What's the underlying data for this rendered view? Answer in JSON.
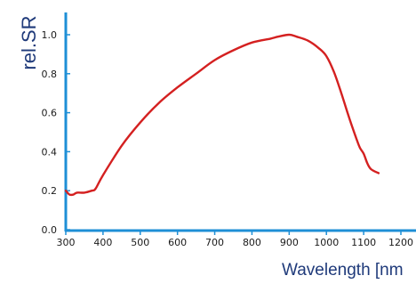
{
  "chart_data": {
    "type": "line",
    "title": "",
    "xlabel": "Wavelength [nm",
    "ylabel": "rel.SR",
    "xlim": [
      300,
      1200
    ],
    "ylim": [
      0.0,
      1.05
    ],
    "grid": false,
    "x_ticks": [
      300,
      400,
      500,
      600,
      700,
      800,
      900,
      1000,
      1100,
      1200
    ],
    "x_tick_labels": [
      "300",
      "400",
      "500",
      "600",
      "700",
      "800",
      "900",
      "1000",
      "1100",
      "1200"
    ],
    "y_ticks": [
      0.0,
      0.2,
      0.4,
      0.6,
      0.8,
      1.0
    ],
    "y_tick_labels": [
      "0.0",
      "0.2",
      "0.4",
      "0.6",
      "0.8",
      "1.0"
    ],
    "colors": {
      "axis": "#1e8fd6",
      "line": "#d42020",
      "labels": "#1f3a7a"
    },
    "series": [
      {
        "x": [
          300,
          310,
          320,
          330,
          350,
          370,
          380,
          400,
          450,
          500,
          550,
          600,
          650,
          700,
          750,
          800,
          850,
          870,
          900,
          920,
          950,
          980,
          1000,
          1020,
          1040,
          1060,
          1080,
          1090,
          1100,
          1110,
          1120,
          1140
        ],
        "values": [
          0.2,
          0.18,
          0.18,
          0.19,
          0.19,
          0.2,
          0.21,
          0.28,
          0.43,
          0.55,
          0.65,
          0.73,
          0.8,
          0.87,
          0.92,
          0.96,
          0.98,
          0.99,
          1.0,
          0.99,
          0.97,
          0.93,
          0.89,
          0.81,
          0.7,
          0.58,
          0.47,
          0.42,
          0.39,
          0.34,
          0.31,
          0.29
        ]
      }
    ]
  }
}
